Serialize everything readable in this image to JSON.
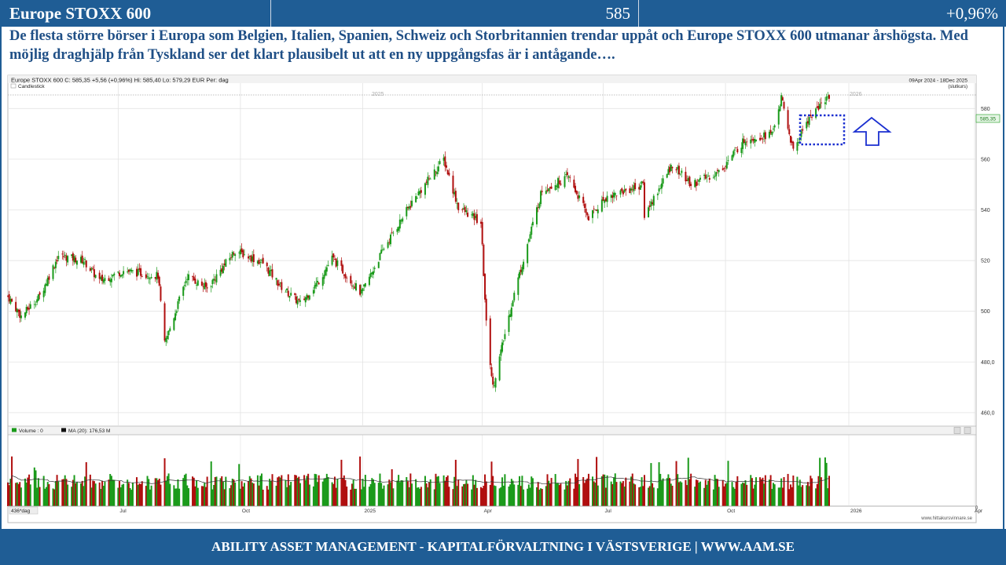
{
  "header": {
    "title": "Europe STOXX 600",
    "price": "585",
    "change": "+0,96%"
  },
  "commentary": "De flesta större börser i Europa som Belgien, Italien, Spanien, Schweiz och Storbritannien trendar uppåt och Europe STOXX 600 utmanar årshögsta. Med möjlig draghjälp från Tyskland ser det klart plausibelt ut att en ny uppgångsfas är i antågande….",
  "chart_info": {
    "info_line": "Europe STOXX 600    C: 585,35  +5,56 (+0,96%)    Hi: 585,40    Lo: 579,29    EUR    Per: dag",
    "period": "09Apr 2024 - 18Dec 2025",
    "period_note": "(slutkurs)",
    "series_label": "Candlestick",
    "last_price_label": "585,35",
    "volume_legend": "Volume : 0",
    "ma_legend": "MA (20): 176,53 M",
    "days_label": "436*dag",
    "watermark": "www.hittakursvinnare.se",
    "year_labels": [
      "2025",
      "2026"
    ]
  },
  "chart_data": {
    "type": "candlestick",
    "title": "Europe STOXX 600",
    "currency": "EUR",
    "period": "dag",
    "close": 585.35,
    "change": 5.56,
    "change_pct": 0.96,
    "high": 585.4,
    "low": 579.29,
    "ylim": [
      455,
      590
    ],
    "yticks": [
      460,
      480,
      500,
      520,
      540,
      560,
      580
    ],
    "ytick_labels": [
      "460,0",
      "480,0",
      "500",
      "520",
      "540",
      "560",
      "580"
    ],
    "xticks": [
      "Jul",
      "Oct",
      "2025",
      "Apr",
      "Jul",
      "Oct",
      "2026",
      "Apr"
    ],
    "x_start": "2024-04-09",
    "x_end": "2025-12-18",
    "volume_zero_label": "0",
    "close_path": [
      [
        "2024-04-09",
        506
      ],
      [
        "2024-04-19",
        498
      ],
      [
        "2024-05-03",
        506
      ],
      [
        "2024-05-17",
        522
      ],
      [
        "2024-06-05",
        520
      ],
      [
        "2024-06-17",
        512
      ],
      [
        "2024-07-05",
        516
      ],
      [
        "2024-07-31",
        514
      ],
      [
        "2024-08-05",
        487
      ],
      [
        "2024-08-22",
        514
      ],
      [
        "2024-09-06",
        509
      ],
      [
        "2024-09-27",
        524
      ],
      [
        "2024-10-18",
        519
      ],
      [
        "2024-10-31",
        510
      ],
      [
        "2024-11-15",
        503
      ],
      [
        "2024-11-29",
        512
      ],
      [
        "2024-12-09",
        521
      ],
      [
        "2024-12-31",
        507
      ],
      [
        "2025-01-17",
        525
      ],
      [
        "2025-02-07",
        543
      ],
      [
        "2025-03-03",
        560
      ],
      [
        "2025-03-14",
        541
      ],
      [
        "2025-03-31",
        535
      ],
      [
        "2025-04-04",
        495
      ],
      [
        "2025-04-09",
        470
      ],
      [
        "2025-04-24",
        505
      ],
      [
        "2025-05-16",
        548
      ],
      [
        "2025-06-05",
        553
      ],
      [
        "2025-06-20",
        537
      ],
      [
        "2025-07-03",
        545
      ],
      [
        "2025-07-31",
        550
      ],
      [
        "2025-08-01",
        538
      ],
      [
        "2025-08-22",
        558
      ],
      [
        "2025-09-05",
        550
      ],
      [
        "2025-09-26",
        555
      ],
      [
        "2025-10-16",
        568
      ],
      [
        "2025-11-05",
        570
      ],
      [
        "2025-11-12",
        584
      ],
      [
        "2025-11-21",
        563
      ],
      [
        "2025-12-01",
        575
      ],
      [
        "2025-12-18",
        585.35
      ]
    ],
    "volume_ma20": 176.53,
    "colors": {
      "up": "#1a9a1a",
      "down": "#b00e0e",
      "last_price_line": "#9a9a9a",
      "highlight": "#1a2fd0",
      "arrow": "#1a2fd0"
    }
  },
  "annotations": {
    "highlight_box": "dotted rectangle around recent highs",
    "arrow": "up"
  },
  "footer": {
    "text": "ABILITY ASSET MANAGEMENT -  KAPITALFÖRVALTNING I VÄSTSVERIGE   |   WWW.AAM.SE"
  }
}
